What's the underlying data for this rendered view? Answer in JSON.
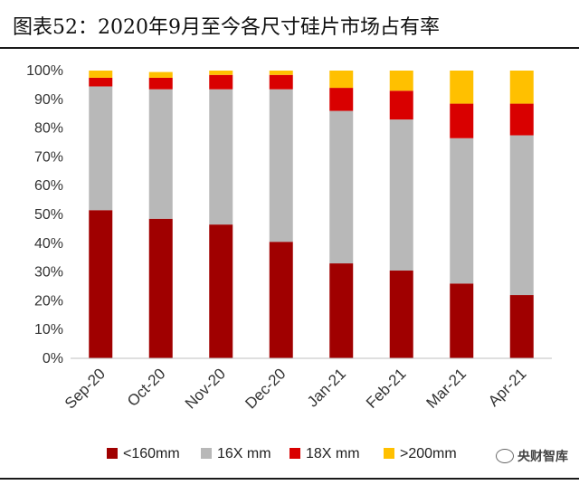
{
  "title": "图表52：2020年9月至今各尺寸硅片市场占有率",
  "watermark": "央财智库",
  "chart_data": {
    "type": "bar",
    "stacked": true,
    "categories": [
      "Sep-20",
      "Oct-20",
      "Nov-20",
      "Dec-20",
      "Jan-21",
      "Feb-21",
      "Mar-21",
      "Apr-21"
    ],
    "series": [
      {
        "name": "<160mm",
        "color": "#a00000",
        "values": [
          51.5,
          48.5,
          46.5,
          40.5,
          33,
          30.5,
          26,
          22
        ]
      },
      {
        "name": "16X mm",
        "color": "#b8b8b8",
        "values": [
          43,
          45,
          47,
          53,
          53,
          52.5,
          50.5,
          55.5
        ]
      },
      {
        "name": "18X mm",
        "color": "#d90000",
        "values": [
          3,
          4,
          5,
          5,
          8,
          10,
          12,
          11
        ]
      },
      {
        "name": ">200mm",
        "color": "#ffc000",
        "values": [
          2.5,
          2,
          1.5,
          1.5,
          6,
          7,
          11.5,
          11.5
        ]
      }
    ],
    "ylim": [
      0,
      100
    ],
    "yticks": [
      "0%",
      "10%",
      "20%",
      "30%",
      "40%",
      "50%",
      "60%",
      "70%",
      "80%",
      "90%",
      "100%"
    ],
    "grid": false,
    "legend": "bottom"
  }
}
